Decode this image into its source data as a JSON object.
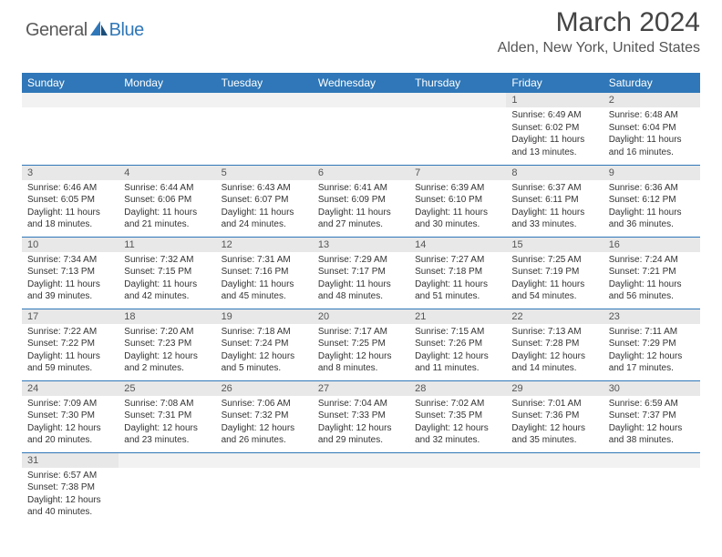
{
  "logo": {
    "part1": "General",
    "part2": "Blue"
  },
  "title": "March 2024",
  "location": "Alden, New York, United States",
  "colors": {
    "header_bg": "#2f77b8",
    "header_text": "#ffffff",
    "daynum_bg": "#e8e8e8",
    "row_divider": "#2f77b8",
    "body_text": "#333333"
  },
  "weekdays": [
    "Sunday",
    "Monday",
    "Tuesday",
    "Wednesday",
    "Thursday",
    "Friday",
    "Saturday"
  ],
  "weeks": [
    [
      null,
      null,
      null,
      null,
      null,
      {
        "d": "1",
        "sunrise": "Sunrise: 6:49 AM",
        "sunset": "Sunset: 6:02 PM",
        "day1": "Daylight: 11 hours",
        "day2": "and 13 minutes."
      },
      {
        "d": "2",
        "sunrise": "Sunrise: 6:48 AM",
        "sunset": "Sunset: 6:04 PM",
        "day1": "Daylight: 11 hours",
        "day2": "and 16 minutes."
      }
    ],
    [
      {
        "d": "3",
        "sunrise": "Sunrise: 6:46 AM",
        "sunset": "Sunset: 6:05 PM",
        "day1": "Daylight: 11 hours",
        "day2": "and 18 minutes."
      },
      {
        "d": "4",
        "sunrise": "Sunrise: 6:44 AM",
        "sunset": "Sunset: 6:06 PM",
        "day1": "Daylight: 11 hours",
        "day2": "and 21 minutes."
      },
      {
        "d": "5",
        "sunrise": "Sunrise: 6:43 AM",
        "sunset": "Sunset: 6:07 PM",
        "day1": "Daylight: 11 hours",
        "day2": "and 24 minutes."
      },
      {
        "d": "6",
        "sunrise": "Sunrise: 6:41 AM",
        "sunset": "Sunset: 6:09 PM",
        "day1": "Daylight: 11 hours",
        "day2": "and 27 minutes."
      },
      {
        "d": "7",
        "sunrise": "Sunrise: 6:39 AM",
        "sunset": "Sunset: 6:10 PM",
        "day1": "Daylight: 11 hours",
        "day2": "and 30 minutes."
      },
      {
        "d": "8",
        "sunrise": "Sunrise: 6:37 AM",
        "sunset": "Sunset: 6:11 PM",
        "day1": "Daylight: 11 hours",
        "day2": "and 33 minutes."
      },
      {
        "d": "9",
        "sunrise": "Sunrise: 6:36 AM",
        "sunset": "Sunset: 6:12 PM",
        "day1": "Daylight: 11 hours",
        "day2": "and 36 minutes."
      }
    ],
    [
      {
        "d": "10",
        "sunrise": "Sunrise: 7:34 AM",
        "sunset": "Sunset: 7:13 PM",
        "day1": "Daylight: 11 hours",
        "day2": "and 39 minutes."
      },
      {
        "d": "11",
        "sunrise": "Sunrise: 7:32 AM",
        "sunset": "Sunset: 7:15 PM",
        "day1": "Daylight: 11 hours",
        "day2": "and 42 minutes."
      },
      {
        "d": "12",
        "sunrise": "Sunrise: 7:31 AM",
        "sunset": "Sunset: 7:16 PM",
        "day1": "Daylight: 11 hours",
        "day2": "and 45 minutes."
      },
      {
        "d": "13",
        "sunrise": "Sunrise: 7:29 AM",
        "sunset": "Sunset: 7:17 PM",
        "day1": "Daylight: 11 hours",
        "day2": "and 48 minutes."
      },
      {
        "d": "14",
        "sunrise": "Sunrise: 7:27 AM",
        "sunset": "Sunset: 7:18 PM",
        "day1": "Daylight: 11 hours",
        "day2": "and 51 minutes."
      },
      {
        "d": "15",
        "sunrise": "Sunrise: 7:25 AM",
        "sunset": "Sunset: 7:19 PM",
        "day1": "Daylight: 11 hours",
        "day2": "and 54 minutes."
      },
      {
        "d": "16",
        "sunrise": "Sunrise: 7:24 AM",
        "sunset": "Sunset: 7:21 PM",
        "day1": "Daylight: 11 hours",
        "day2": "and 56 minutes."
      }
    ],
    [
      {
        "d": "17",
        "sunrise": "Sunrise: 7:22 AM",
        "sunset": "Sunset: 7:22 PM",
        "day1": "Daylight: 11 hours",
        "day2": "and 59 minutes."
      },
      {
        "d": "18",
        "sunrise": "Sunrise: 7:20 AM",
        "sunset": "Sunset: 7:23 PM",
        "day1": "Daylight: 12 hours",
        "day2": "and 2 minutes."
      },
      {
        "d": "19",
        "sunrise": "Sunrise: 7:18 AM",
        "sunset": "Sunset: 7:24 PM",
        "day1": "Daylight: 12 hours",
        "day2": "and 5 minutes."
      },
      {
        "d": "20",
        "sunrise": "Sunrise: 7:17 AM",
        "sunset": "Sunset: 7:25 PM",
        "day1": "Daylight: 12 hours",
        "day2": "and 8 minutes."
      },
      {
        "d": "21",
        "sunrise": "Sunrise: 7:15 AM",
        "sunset": "Sunset: 7:26 PM",
        "day1": "Daylight: 12 hours",
        "day2": "and 11 minutes."
      },
      {
        "d": "22",
        "sunrise": "Sunrise: 7:13 AM",
        "sunset": "Sunset: 7:28 PM",
        "day1": "Daylight: 12 hours",
        "day2": "and 14 minutes."
      },
      {
        "d": "23",
        "sunrise": "Sunrise: 7:11 AM",
        "sunset": "Sunset: 7:29 PM",
        "day1": "Daylight: 12 hours",
        "day2": "and 17 minutes."
      }
    ],
    [
      {
        "d": "24",
        "sunrise": "Sunrise: 7:09 AM",
        "sunset": "Sunset: 7:30 PM",
        "day1": "Daylight: 12 hours",
        "day2": "and 20 minutes."
      },
      {
        "d": "25",
        "sunrise": "Sunrise: 7:08 AM",
        "sunset": "Sunset: 7:31 PM",
        "day1": "Daylight: 12 hours",
        "day2": "and 23 minutes."
      },
      {
        "d": "26",
        "sunrise": "Sunrise: 7:06 AM",
        "sunset": "Sunset: 7:32 PM",
        "day1": "Daylight: 12 hours",
        "day2": "and 26 minutes."
      },
      {
        "d": "27",
        "sunrise": "Sunrise: 7:04 AM",
        "sunset": "Sunset: 7:33 PM",
        "day1": "Daylight: 12 hours",
        "day2": "and 29 minutes."
      },
      {
        "d": "28",
        "sunrise": "Sunrise: 7:02 AM",
        "sunset": "Sunset: 7:35 PM",
        "day1": "Daylight: 12 hours",
        "day2": "and 32 minutes."
      },
      {
        "d": "29",
        "sunrise": "Sunrise: 7:01 AM",
        "sunset": "Sunset: 7:36 PM",
        "day1": "Daylight: 12 hours",
        "day2": "and 35 minutes."
      },
      {
        "d": "30",
        "sunrise": "Sunrise: 6:59 AM",
        "sunset": "Sunset: 7:37 PM",
        "day1": "Daylight: 12 hours",
        "day2": "and 38 minutes."
      }
    ],
    [
      {
        "d": "31",
        "sunrise": "Sunrise: 6:57 AM",
        "sunset": "Sunset: 7:38 PM",
        "day1": "Daylight: 12 hours",
        "day2": "and 40 minutes."
      },
      null,
      null,
      null,
      null,
      null,
      null
    ]
  ]
}
